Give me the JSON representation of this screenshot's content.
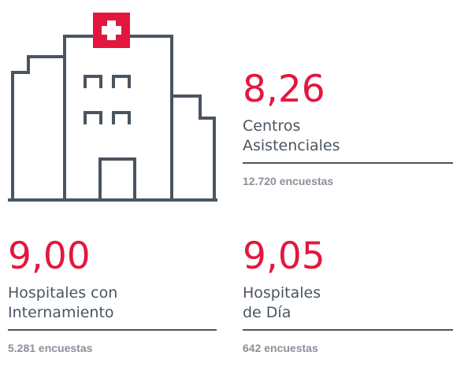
{
  "stats": [
    {
      "score": "8,26",
      "label": [
        "Centros",
        "Asistenciales"
      ],
      "surveys": "12.720 encuestas"
    },
    {
      "score": "9,00",
      "label": [
        "Hospitales con",
        "Internamiento"
      ],
      "surveys": "5.281 encuestas"
    },
    {
      "score": "9,05",
      "label": [
        "Hospitales",
        "de Día"
      ],
      "surveys": "642 encuestas"
    }
  ]
}
